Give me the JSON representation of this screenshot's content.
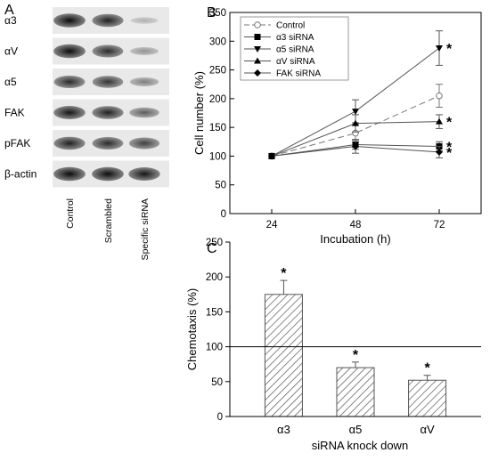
{
  "panels": {
    "a": "A",
    "b": "B",
    "c": "C"
  },
  "blot": {
    "rows": [
      {
        "label": "α3",
        "intensity": [
          0.95,
          0.85,
          0.15
        ]
      },
      {
        "label": "αV",
        "intensity": [
          0.95,
          0.8,
          0.3
        ]
      },
      {
        "label": "α5",
        "intensity": [
          0.8,
          0.75,
          0.4
        ]
      },
      {
        "label": "FAK",
        "intensity": [
          0.9,
          0.85,
          0.55
        ]
      },
      {
        "label": "pFAK",
        "intensity": [
          0.85,
          0.8,
          0.7
        ]
      },
      {
        "label": "β-actin",
        "intensity": [
          0.95,
          0.95,
          0.9
        ]
      }
    ],
    "lanes": [
      "Control",
      "Scrambled",
      "Specific siRNA"
    ]
  },
  "chart_data": [
    {
      "type": "line",
      "panel": "B",
      "xlabel": "Incubation (h)",
      "ylabel": "Cell  number (%)",
      "x": [
        24,
        48,
        72
      ],
      "ylim": [
        0,
        350
      ],
      "yticks": [
        0,
        50,
        100,
        150,
        200,
        250,
        300,
        350
      ],
      "legend_position": "top-left",
      "series": [
        {
          "name": "Control",
          "marker": "open-circle",
          "dashed": true,
          "values": [
            100,
            140,
            205
          ],
          "errors": [
            0,
            15,
            20
          ],
          "star": false
        },
        {
          "name": "α3 siRNA",
          "marker": "square",
          "dashed": false,
          "values": [
            100,
            120,
            117
          ],
          "errors": [
            0,
            8,
            8
          ],
          "star": true
        },
        {
          "name": "α5 siRNA",
          "marker": "triangle-down",
          "dashed": false,
          "values": [
            100,
            178,
            288
          ],
          "errors": [
            0,
            20,
            30
          ],
          "star": true
        },
        {
          "name": "αV siRNA",
          "marker": "triangle-up",
          "dashed": false,
          "values": [
            100,
            157,
            160
          ],
          "errors": [
            0,
            15,
            12
          ],
          "star": true
        },
        {
          "name": "FAK siRNA",
          "marker": "diamond",
          "dashed": false,
          "values": [
            100,
            117,
            107
          ],
          "errors": [
            0,
            12,
            10
          ],
          "star": true
        }
      ]
    },
    {
      "type": "bar",
      "panel": "C",
      "xlabel": "siRNA knock down",
      "ylabel": "Chemotaxis (%)",
      "categories": [
        "α3",
        "α5",
        "αV"
      ],
      "values": [
        175,
        70,
        52
      ],
      "errors": [
        20,
        8,
        7
      ],
      "stars": [
        "*",
        "*",
        "*"
      ],
      "reference_line": 100,
      "ylim": [
        0,
        250
      ],
      "yticks": [
        0,
        50,
        100,
        150,
        200,
        250
      ]
    }
  ]
}
